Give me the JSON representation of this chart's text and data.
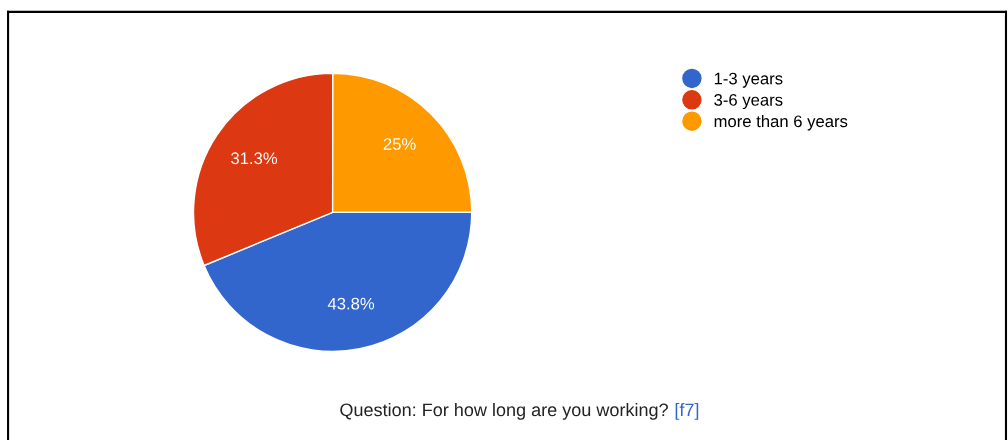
{
  "chart_data": {
    "type": "pie",
    "categories": [
      "1-3 years",
      "3-6 years",
      "more than 6 years"
    ],
    "values": [
      43.8,
      31.3,
      25
    ],
    "colors": [
      "#3366cc",
      "#dc3912",
      "#ff9900"
    ],
    "value_labels": [
      "43.8%",
      "31.3%",
      "25%"
    ],
    "legend": "right",
    "annotations": [
      "Question: For how long are you working?",
      "[f7]"
    ]
  }
}
